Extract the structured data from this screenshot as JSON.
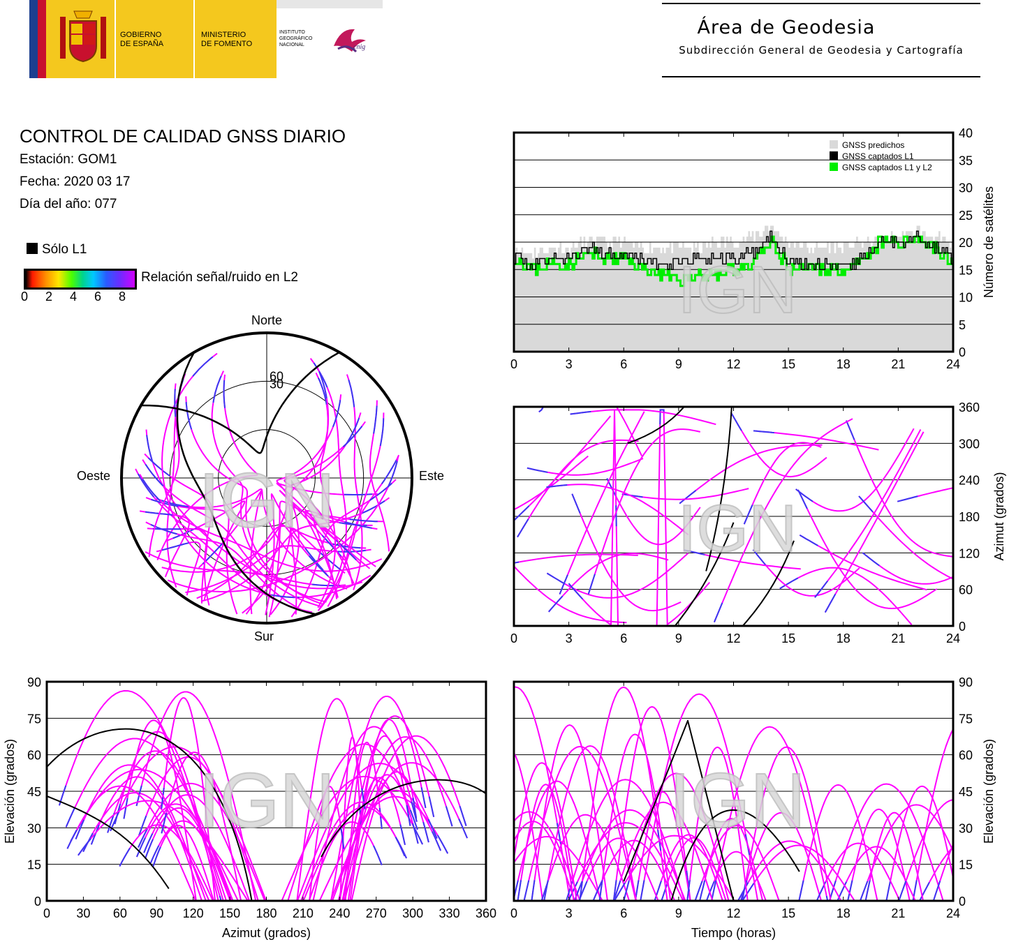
{
  "header": {
    "gov_line1": "GOBIERNO",
    "gov_line2": "DE ESPAÑA",
    "min_line1": "MINISTERIO",
    "min_line2": "DE FOMENTO",
    "ign_line1": "INSTITUTO",
    "ign_line2": "GEOGRÁFICO",
    "ign_line3": "NACIONAL",
    "cnig": "cnig",
    "area_title": "Área de Geodesia",
    "area_subtitle": "Subdirección General de Geodesia y Cartografía"
  },
  "report": {
    "title": "CONTROL DE CALIDAD GNSS DIARIO",
    "station": "Estación: GOM1",
    "date": "Fecha: 2020 03 17",
    "doy": "Día del año: 077",
    "legend_l1": "Sólo L1",
    "legend_snr": "Relación señal/ruido en L2",
    "snr_ticks": [
      "0",
      "2",
      "4",
      "6",
      "8"
    ]
  },
  "watermark": "IGN",
  "colors": {
    "l2_track": "#ff00ff",
    "l1_track": "#000000",
    "low_snr_track": "#3a3af0",
    "predicted_fill": "#d9d9d9",
    "l1l2_line": "#00ee00"
  },
  "chart_data": [
    {
      "id": "satellite_count",
      "type": "area",
      "title": "",
      "xlabel": "",
      "ylabel": "Número de satélites",
      "xlim": [
        0,
        24
      ],
      "ylim": [
        0,
        40
      ],
      "xticks": [
        "0",
        "3",
        "6",
        "9",
        "12",
        "15",
        "18",
        "21",
        "24"
      ],
      "yticks": [
        "0",
        "5",
        "10",
        "15",
        "20",
        "25",
        "30",
        "35",
        "40"
      ],
      "grid": true,
      "legend": "top-right",
      "series": [
        {
          "name": "GNSS predichos",
          "x": [
            0,
            1,
            2,
            3,
            4,
            5,
            6,
            7,
            8,
            9,
            10,
            11,
            12,
            13,
            14,
            15,
            16,
            17,
            18,
            19,
            20,
            21,
            22,
            23,
            24
          ],
          "values": [
            19,
            18,
            19,
            19,
            20,
            20,
            20,
            19,
            19,
            19,
            19,
            20,
            20,
            21,
            23,
            20,
            19,
            19,
            19,
            20,
            20,
            21,
            22,
            21,
            19
          ]
        },
        {
          "name": "GNSS captados L1",
          "x": [
            0,
            1,
            2,
            3,
            4,
            5,
            6,
            7,
            8,
            9,
            10,
            11,
            12,
            13,
            14,
            15,
            16,
            17,
            18,
            19,
            20,
            21,
            22,
            23,
            24
          ],
          "values": [
            17,
            16,
            17,
            17,
            19,
            18,
            18,
            17,
            16,
            16,
            17,
            17,
            17,
            18,
            21,
            17,
            16,
            16,
            15,
            17,
            20,
            20,
            21,
            19,
            17
          ]
        },
        {
          "name": "GNSS captados L1 y L2",
          "x": [
            0,
            1,
            2,
            3,
            4,
            5,
            6,
            7,
            8,
            9,
            10,
            11,
            12,
            13,
            14,
            15,
            16,
            17,
            18,
            19,
            20,
            21,
            22,
            23,
            24
          ],
          "values": [
            17,
            15,
            16,
            16,
            18,
            17,
            17,
            15,
            14,
            13,
            14,
            14,
            15,
            16,
            20,
            15,
            15,
            15,
            15,
            16,
            20,
            20,
            21,
            19,
            16
          ]
        }
      ]
    },
    {
      "id": "skyplot",
      "type": "scatter",
      "title": "",
      "labels": [
        "Norte",
        "Este",
        "Sur",
        "Oeste"
      ],
      "rings": [
        "30",
        "60"
      ],
      "note": "polar sky plot of satellite tracks"
    },
    {
      "id": "azimuth_time",
      "type": "scatter",
      "title": "",
      "xlabel": "",
      "ylabel": "Azimut (grados)",
      "xlim": [
        0,
        24
      ],
      "ylim": [
        0,
        360
      ],
      "xticks": [
        "0",
        "3",
        "6",
        "9",
        "12",
        "15",
        "18",
        "21",
        "24"
      ],
      "yticks": [
        "0",
        "60",
        "120",
        "180",
        "240",
        "300",
        "360"
      ],
      "grid": true
    },
    {
      "id": "elevation_azimuth",
      "type": "scatter",
      "title": "",
      "xlabel": "Azimut (grados)",
      "ylabel": "Elevación (grados)",
      "xlim": [
        0,
        360
      ],
      "ylim": [
        0,
        90
      ],
      "xticks": [
        "0",
        "30",
        "60",
        "90",
        "120",
        "150",
        "180",
        "210",
        "240",
        "270",
        "300",
        "330",
        "360"
      ],
      "yticks": [
        "0",
        "15",
        "30",
        "45",
        "60",
        "75",
        "90"
      ],
      "grid": true
    },
    {
      "id": "elevation_time",
      "type": "scatter",
      "title": "",
      "xlabel": "Tiempo (horas)",
      "ylabel": "Elevación (grados)",
      "xlim": [
        0,
        24
      ],
      "ylim": [
        0,
        90
      ],
      "xticks": [
        "0",
        "3",
        "6",
        "9",
        "12",
        "15",
        "18",
        "21",
        "24"
      ],
      "yticks": [
        "0",
        "15",
        "30",
        "45",
        "60",
        "75",
        "90"
      ],
      "grid": true
    }
  ]
}
